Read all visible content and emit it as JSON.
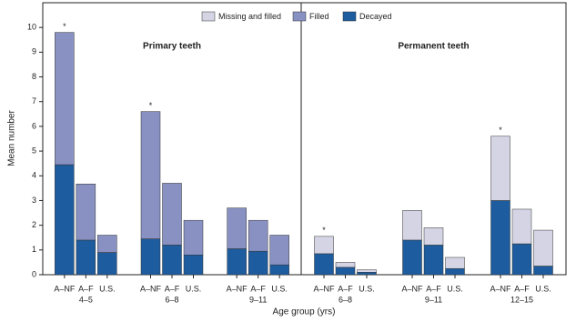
{
  "chart_data": {
    "type": "stacked_bar",
    "ylabel": "Mean number",
    "xlabel": "Age group (yrs)",
    "panels": [
      "Primary teeth",
      "Permanent teeth"
    ],
    "group_labels": [
      "4–5",
      "6–8",
      "9–11",
      "6–8",
      "9–11",
      "12–15"
    ],
    "categories": [
      "A–NF",
      "A–F",
      "U.S.",
      "A–NF",
      "A–F",
      "U.S.",
      "A–NF",
      "A–F",
      "U.S.",
      "A–NF",
      "A–F",
      "U.S.",
      "A–NF",
      "A–F",
      "U.S.",
      "A–NF",
      "A–F",
      "U.S."
    ],
    "annotations": [
      "*",
      null,
      null,
      "*",
      null,
      null,
      null,
      null,
      null,
      "*",
      null,
      null,
      null,
      null,
      null,
      "*",
      null,
      null
    ],
    "series": [
      {
        "name": "Missing and filled",
        "color": "#d4d4e4",
        "values": [
          null,
          null,
          null,
          null,
          null,
          null,
          null,
          null,
          null,
          0.7,
          0.2,
          0.1,
          1.2,
          0.7,
          0.45,
          2.6,
          1.4,
          1.45
        ]
      },
      {
        "name": "Filled",
        "color": "#8891c2",
        "values": [
          5.35,
          2.27,
          0.7,
          5.15,
          2.5,
          1.4,
          1.65,
          1.25,
          1.2,
          null,
          null,
          null,
          null,
          null,
          null,
          null,
          null,
          null
        ]
      },
      {
        "name": "Decayed",
        "color": "#1d5c9e",
        "values": [
          4.45,
          1.4,
          0.9,
          1.45,
          1.2,
          0.8,
          1.05,
          0.95,
          0.4,
          0.85,
          0.3,
          0.1,
          1.4,
          1.2,
          0.25,
          3.0,
          1.25,
          0.35
        ]
      }
    ],
    "ylim": [
      0,
      11
    ],
    "yticks": [
      0,
      1,
      2,
      3,
      4,
      5,
      6,
      7,
      8,
      9,
      10
    ]
  }
}
